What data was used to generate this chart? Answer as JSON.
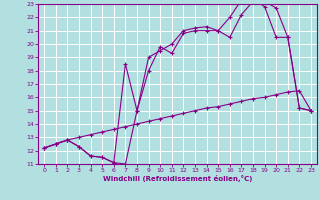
{
  "xlabel": "Windchill (Refroidissement éolien,°C)",
  "background_color": "#b2e0e0",
  "grid_color": "#ffffff",
  "line_color": "#880088",
  "xlim": [
    -0.5,
    23.5
  ],
  "ylim": [
    11,
    23
  ],
  "xticks": [
    0,
    1,
    2,
    3,
    4,
    5,
    6,
    7,
    8,
    9,
    10,
    11,
    12,
    13,
    14,
    15,
    16,
    17,
    18,
    19,
    20,
    21,
    22,
    23
  ],
  "yticks": [
    11,
    12,
    13,
    14,
    15,
    16,
    17,
    18,
    19,
    20,
    21,
    22,
    23
  ],
  "line1_x": [
    0,
    1,
    2,
    3,
    4,
    5,
    6,
    7,
    8,
    9,
    10,
    11,
    12,
    13,
    14,
    15,
    16,
    17,
    18,
    19,
    20,
    21,
    22,
    23
  ],
  "line1_y": [
    12.2,
    12.5,
    12.8,
    13.0,
    13.2,
    13.4,
    13.6,
    13.8,
    14.0,
    14.2,
    14.4,
    14.6,
    14.8,
    15.0,
    15.2,
    15.3,
    15.5,
    15.7,
    15.9,
    16.0,
    16.2,
    16.4,
    16.5,
    15.0
  ],
  "line2_x": [
    0,
    1,
    2,
    3,
    4,
    5,
    6,
    7,
    8,
    9,
    10,
    11,
    12,
    13,
    14,
    15,
    16,
    17,
    18,
    19,
    20,
    21,
    22,
    23
  ],
  "line2_y": [
    12.2,
    12.5,
    12.8,
    12.3,
    11.6,
    11.5,
    11.1,
    11.0,
    15.0,
    18.0,
    19.8,
    19.3,
    20.8,
    21.0,
    21.0,
    21.0,
    20.5,
    22.2,
    23.2,
    23.2,
    22.7,
    20.5,
    15.2,
    15.0
  ],
  "line3_x": [
    0,
    1,
    2,
    3,
    4,
    5,
    6,
    7,
    8,
    9,
    10,
    11,
    12,
    13,
    14,
    15,
    16,
    17,
    18,
    19,
    20,
    21,
    22,
    23
  ],
  "line3_y": [
    12.2,
    12.5,
    12.8,
    12.3,
    11.6,
    11.5,
    11.1,
    18.5,
    15.0,
    19.0,
    19.5,
    20.0,
    21.0,
    21.2,
    21.3,
    21.0,
    22.0,
    23.3,
    23.4,
    22.8,
    20.5,
    20.5,
    15.2,
    15.0
  ]
}
